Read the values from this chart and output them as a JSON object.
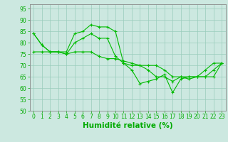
{
  "x": [
    0,
    1,
    2,
    3,
    4,
    5,
    6,
    7,
    8,
    9,
    10,
    11,
    12,
    13,
    14,
    15,
    16,
    17,
    18,
    19,
    20,
    21,
    22,
    23
  ],
  "series": [
    [
      84,
      79,
      76,
      76,
      76,
      84,
      85,
      88,
      87,
      87,
      85,
      71,
      68,
      62,
      63,
      64,
      66,
      58,
      64,
      65,
      65,
      68,
      71,
      71
    ],
    [
      84,
      79,
      76,
      76,
      75,
      80,
      82,
      84,
      82,
      82,
      74,
      71,
      70,
      70,
      68,
      65,
      65,
      63,
      65,
      64,
      65,
      65,
      68,
      71
    ],
    [
      76,
      76,
      76,
      76,
      75,
      76,
      76,
      76,
      74,
      73,
      73,
      72,
      71,
      70,
      70,
      70,
      68,
      65,
      65,
      65,
      65,
      65,
      65,
      71
    ]
  ],
  "line_color": "#00BB00",
  "marker_color": "#00BB00",
  "bg_color": "#CCE8E0",
  "grid_color": "#99CCBB",
  "xlim": [
    -0.5,
    23.5
  ],
  "ylim": [
    50,
    97
  ],
  "yticks": [
    50,
    55,
    60,
    65,
    70,
    75,
    80,
    85,
    90,
    95
  ],
  "xtick_labels": [
    "0",
    "1",
    "2",
    "3",
    "4",
    "5",
    "6",
    "7",
    "8",
    "9",
    "10",
    "11",
    "12",
    "13",
    "14",
    "15",
    "16",
    "17",
    "18",
    "19",
    "20",
    "21",
    "22",
    "23"
  ],
  "xlabel": "Humidité relative (%)",
  "xlabel_color": "#00AA00",
  "tick_color": "#00AA00",
  "axis_color": "#888888",
  "fontsize_ticks": 5.5,
  "fontsize_xlabel": 7.5
}
